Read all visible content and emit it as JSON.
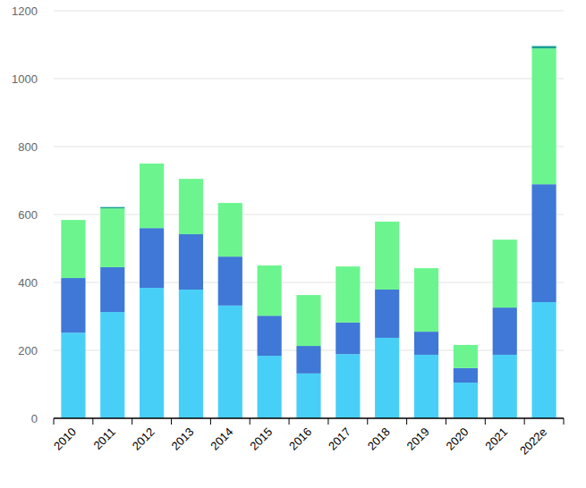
{
  "chart_data": {
    "type": "bar",
    "stacked": true,
    "grid": true,
    "categories": [
      "2010",
      "2011",
      "2012",
      "2013",
      "2014",
      "2015",
      "2016",
      "2017",
      "2018",
      "2019",
      "2020",
      "2021",
      "2022e"
    ],
    "series": [
      {
        "color": "#48cff8",
        "values": [
          252,
          313,
          384,
          379,
          332,
          184,
          132,
          189,
          237,
          187,
          105,
          187,
          342
        ]
      },
      {
        "color": "#3f78d6",
        "values": [
          161,
          132,
          176,
          163,
          144,
          118,
          81,
          93,
          142,
          68,
          43,
          139,
          347
        ]
      },
      {
        "color": "#6cf58f",
        "values": [
          171,
          173,
          190,
          163,
          158,
          148,
          150,
          165,
          200,
          187,
          68,
          200,
          400
        ]
      },
      {
        "color": "#1a9e96",
        "values": [
          0,
          4,
          0,
          0,
          0,
          0,
          0,
          0,
          0,
          0,
          0,
          0,
          7
        ]
      }
    ],
    "ylim": [
      0,
      1200
    ],
    "yticks": [
      0,
      200,
      400,
      600,
      800,
      1000,
      1200
    ]
  }
}
